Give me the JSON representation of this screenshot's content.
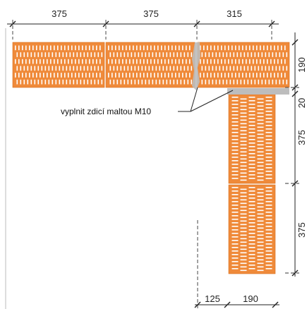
{
  "dimensions": {
    "top": [
      "375",
      "375",
      "315"
    ],
    "right": [
      "190",
      "20",
      "375",
      "375"
    ],
    "bottom": [
      "125",
      "190"
    ]
  },
  "note": {
    "text": "vyplnit zdicí maltou M10"
  },
  "colors": {
    "brick": "#ef8a3a",
    "brick_edge": "#d8701f",
    "perforation": "#ffffff",
    "mortar": "#bdbdbd",
    "lines": "#222222"
  }
}
